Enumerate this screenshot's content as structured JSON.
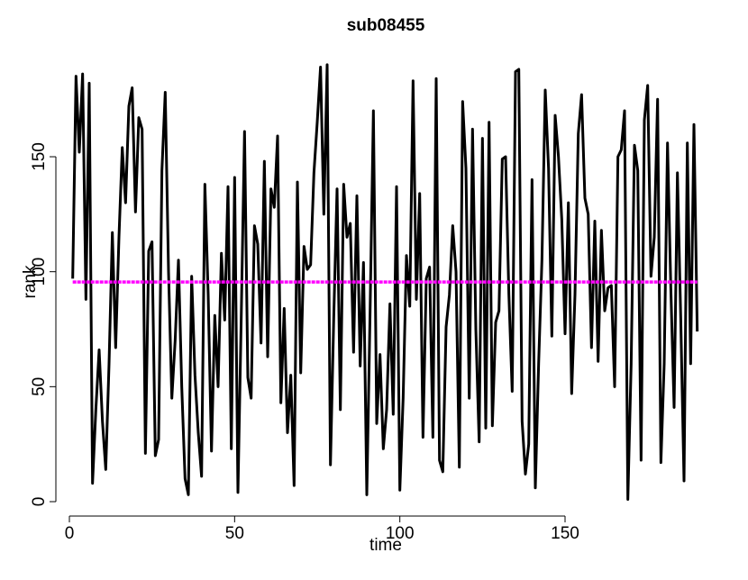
{
  "chart_data": {
    "type": "line",
    "title": "sub08455",
    "x_label": "time",
    "y_label": "rank",
    "x": [
      1,
      2,
      3,
      4,
      5,
      6,
      7,
      8,
      9,
      10,
      11,
      12,
      13,
      14,
      15,
      16,
      17,
      18,
      19,
      20,
      21,
      22,
      23,
      24,
      25,
      26,
      27,
      28,
      29,
      30,
      31,
      32,
      33,
      34,
      35,
      36,
      37,
      38,
      39,
      40,
      41,
      42,
      43,
      44,
      45,
      46,
      47,
      48,
      49,
      50,
      51,
      52,
      53,
      54,
      55,
      56,
      57,
      58,
      59,
      60,
      61,
      62,
      63,
      64,
      65,
      66,
      67,
      68,
      69,
      70,
      71,
      72,
      73,
      74,
      75,
      76,
      77,
      78,
      79,
      80,
      81,
      82,
      83,
      84,
      85,
      86,
      87,
      88,
      89,
      90,
      91,
      92,
      93,
      94,
      95,
      96,
      97,
      98,
      99,
      100,
      101,
      102,
      103,
      104,
      105,
      106,
      107,
      108,
      109,
      110,
      111,
      112,
      113,
      114,
      115,
      116,
      117,
      118,
      119,
      120,
      121,
      122,
      123,
      124,
      125,
      126,
      127,
      128,
      129,
      130,
      131,
      132,
      133,
      134,
      135,
      136,
      137,
      138,
      139,
      140,
      141,
      142,
      143,
      144,
      145,
      146,
      147,
      148,
      149,
      150,
      151,
      152,
      153,
      154,
      155,
      156,
      157,
      158,
      159,
      160,
      161,
      162,
      163,
      164,
      165,
      166,
      167,
      168,
      169,
      170,
      171,
      172,
      173,
      174,
      175,
      176,
      177,
      178,
      179,
      180,
      181,
      182,
      183,
      184,
      185,
      186,
      187,
      188,
      189,
      190
    ],
    "series": [
      {
        "color": "#000000",
        "values": [
          97,
          185,
          152,
          186,
          88,
          182,
          8,
          40,
          66,
          35,
          14,
          60,
          117,
          67,
          115,
          154,
          130,
          172,
          180,
          126,
          167,
          162,
          21,
          109,
          113,
          20,
          27,
          144,
          178,
          100,
          45,
          70,
          105,
          50,
          10,
          3,
          98,
          55,
          30,
          11,
          138,
          90,
          22,
          81,
          50,
          108,
          79,
          137,
          23,
          141,
          4,
          80,
          161,
          54,
          45,
          120,
          112,
          69,
          148,
          63,
          136,
          128,
          159,
          43,
          84,
          30,
          55,
          7,
          139,
          56,
          111,
          101,
          103,
          143,
          165,
          189,
          125,
          190,
          16,
          80,
          136,
          40,
          138,
          115,
          121,
          65,
          133,
          59,
          104,
          3,
          83,
          170,
          34,
          64,
          23,
          40,
          86,
          38,
          137,
          5,
          45,
          107,
          85,
          183,
          88,
          134,
          28,
          97,
          102,
          28,
          184,
          18,
          13,
          76,
          90,
          120,
          100,
          15,
          174,
          145,
          45,
          162,
          75,
          26,
          158,
          32,
          165,
          33,
          78,
          83,
          149,
          150,
          90,
          48,
          187,
          188,
          35,
          12,
          25,
          140,
          6,
          60,
          105,
          179,
          145,
          72,
          168,
          150,
          123,
          73,
          130,
          47,
          90,
          160,
          177,
          132,
          125,
          67,
          122,
          61,
          118,
          83,
          93,
          94,
          50,
          150,
          153,
          170,
          1,
          60,
          155,
          144,
          18,
          166,
          181,
          98,
          115,
          175,
          17,
          60,
          156,
          93,
          41,
          143,
          80,
          9,
          156,
          60,
          164,
          74
        ]
      }
    ],
    "hline": {
      "value": 95.5,
      "color": "#ff00ff"
    },
    "xlim": [
      -6.56,
      197.56
    ],
    "ylim": [
      -6.56,
      197.56
    ],
    "xticks": [
      0,
      50,
      100,
      150
    ],
    "yticks": [
      0,
      50,
      100,
      150
    ]
  }
}
